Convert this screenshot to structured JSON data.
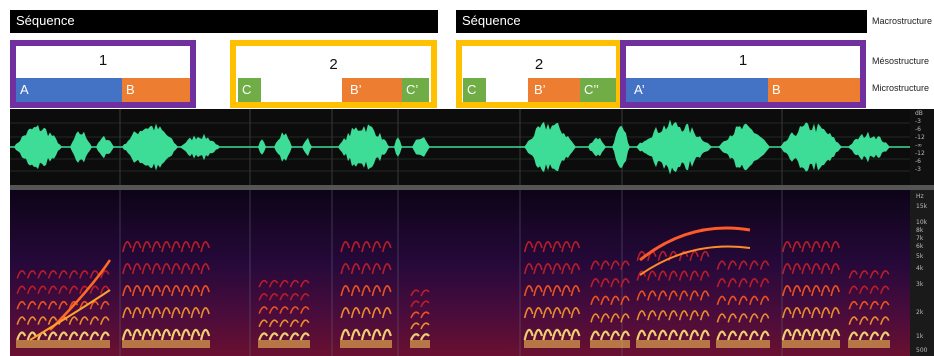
{
  "macro": {
    "seq1": "Séquence",
    "seq2": "Séquence",
    "label": "Macrostructure"
  },
  "meso_label": "Mésostructure",
  "micro_label": "Microstructure",
  "groups": [
    {
      "number": "1",
      "border": "#7030a0",
      "segments": [
        "A",
        "B"
      ]
    },
    {
      "number": "2",
      "border": "#ffc000",
      "segments": [
        "C",
        "B’",
        "C’"
      ]
    },
    {
      "number": "2",
      "border": "#ffc000",
      "segments": [
        "C",
        "B’",
        "C’’"
      ]
    },
    {
      "number": "1",
      "border": "#7030a0",
      "segments": [
        "A’",
        "B"
      ]
    }
  ],
  "colors": {
    "A": "#4472c4",
    "B": "#ed7d31",
    "C": "#70ad47",
    "waveform": "#3ddc97"
  },
  "waveform_scale": [
    "dB",
    "-3",
    "-6",
    "-12",
    "-∞",
    "-12",
    "-6",
    "-3"
  ],
  "spectrogram_scale": [
    "Hz",
    "15k",
    "10k",
    "8k",
    "7k",
    "6k",
    "5k",
    "4k",
    "3k",
    "2k",
    "1k",
    "500"
  ]
}
